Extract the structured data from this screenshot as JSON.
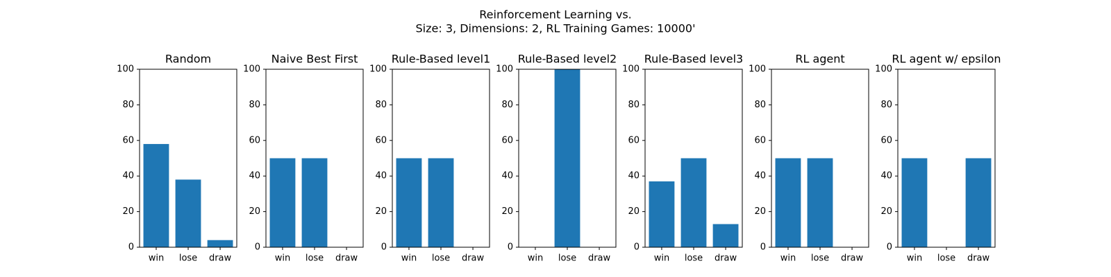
{
  "figure": {
    "title_line1": "Reinforcement Learning vs.",
    "title_line2": "Size: 3, Dimensions: 2, RL Training Games: 10000'"
  },
  "bar_color": "#1f77b4",
  "chart_data": [
    {
      "type": "bar",
      "title": "Random",
      "categories": [
        "win",
        "lose",
        "draw"
      ],
      "values": [
        58,
        38,
        4
      ],
      "ylim": [
        0,
        100
      ],
      "yticks": [
        0,
        20,
        40,
        60,
        80,
        100
      ],
      "xlabel": "",
      "ylabel": "",
      "grid": false
    },
    {
      "type": "bar",
      "title": "Naive Best First",
      "categories": [
        "win",
        "lose",
        "draw"
      ],
      "values": [
        50,
        50,
        0
      ],
      "ylim": [
        0,
        100
      ],
      "yticks": [
        0,
        20,
        40,
        60,
        80,
        100
      ],
      "xlabel": "",
      "ylabel": "",
      "grid": false
    },
    {
      "type": "bar",
      "title": "Rule-Based level1",
      "categories": [
        "win",
        "lose",
        "draw"
      ],
      "values": [
        50,
        50,
        0
      ],
      "ylim": [
        0,
        100
      ],
      "yticks": [
        0,
        20,
        40,
        60,
        80,
        100
      ],
      "xlabel": "",
      "ylabel": "",
      "grid": false
    },
    {
      "type": "bar",
      "title": "Rule-Based level2",
      "categories": [
        "win",
        "lose",
        "draw"
      ],
      "values": [
        0,
        100,
        0
      ],
      "ylim": [
        0,
        100
      ],
      "yticks": [
        0,
        20,
        40,
        60,
        80,
        100
      ],
      "xlabel": "",
      "ylabel": "",
      "grid": false
    },
    {
      "type": "bar",
      "title": "Rule-Based level3",
      "categories": [
        "win",
        "lose",
        "draw"
      ],
      "values": [
        37,
        50,
        13
      ],
      "ylim": [
        0,
        100
      ],
      "yticks": [
        0,
        20,
        40,
        60,
        80,
        100
      ],
      "xlabel": "",
      "ylabel": "",
      "grid": false
    },
    {
      "type": "bar",
      "title": "RL agent",
      "categories": [
        "win",
        "lose",
        "draw"
      ],
      "values": [
        50,
        50,
        0
      ],
      "ylim": [
        0,
        100
      ],
      "yticks": [
        0,
        20,
        40,
        60,
        80,
        100
      ],
      "xlabel": "",
      "ylabel": "",
      "grid": false
    },
    {
      "type": "bar",
      "title": "RL agent w/ epsilon",
      "categories": [
        "win",
        "lose",
        "draw"
      ],
      "values": [
        50,
        0,
        50
      ],
      "ylim": [
        0,
        100
      ],
      "yticks": [
        0,
        20,
        40,
        60,
        80,
        100
      ],
      "xlabel": "",
      "ylabel": "",
      "grid": false
    }
  ]
}
